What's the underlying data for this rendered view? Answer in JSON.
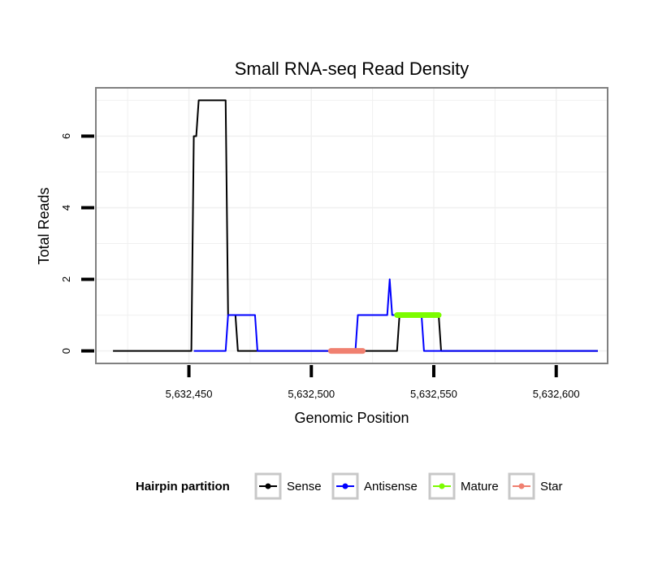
{
  "chart_data": {
    "type": "line",
    "title": "Small RNA-seq Read Density",
    "xlabel": "Genomic Position",
    "ylabel": "Total Reads",
    "xlim": [
      5632412,
      5632621
    ],
    "ylim": [
      -0.35,
      7.35
    ],
    "x_ticks": [
      5632450,
      5632500,
      5632550,
      5632600
    ],
    "x_tick_labels": [
      "5,632,450",
      "5,632,500",
      "5,632,550",
      "5,632,600"
    ],
    "y_ticks": [
      0,
      2,
      4,
      6
    ],
    "y_tick_labels": [
      "0",
      "2",
      "4",
      "6"
    ],
    "grid": true,
    "legend": {
      "title": "Hairpin partition",
      "placement": "bottom",
      "entries": [
        "Sense",
        "Antisense",
        "Mature",
        "Star"
      ]
    },
    "colors": {
      "Sense": "#000000",
      "Antisense": "#0000ff",
      "Mature": "#7cfc00",
      "Star": "#f08070",
      "panel_border": "#808080",
      "grid": "#f0f0f0"
    },
    "series": [
      {
        "name": "Sense",
        "x": [
          5632419,
          5632450,
          5632451,
          5632452,
          5632453,
          5632454,
          5632465,
          5632466,
          5632469,
          5632470,
          5632475,
          5632491,
          5632510,
          5632533,
          5632535,
          5632536,
          5632550,
          5632551,
          5632552,
          5632553,
          5632617
        ],
        "y": [
          0,
          0,
          0,
          6,
          6,
          7,
          7,
          1,
          1,
          0,
          0,
          0,
          0,
          0,
          0,
          1,
          1,
          1,
          1,
          0,
          0
        ]
      },
      {
        "name": "Antisense",
        "x": [
          5632452,
          5632465,
          5632466,
          5632477,
          5632478,
          5632518,
          5632519,
          5632531,
          5632532,
          5632533,
          5632534,
          5632545,
          5632546,
          5632617
        ],
        "y": [
          0,
          0,
          1,
          1,
          0,
          0,
          1,
          1,
          2,
          1,
          1,
          1,
          0,
          0
        ]
      },
      {
        "name": "Mature",
        "x": [
          5632535,
          5632552
        ],
        "y": [
          1,
          1
        ]
      },
      {
        "name": "Star",
        "x": [
          5632508,
          5632521
        ],
        "y": [
          0,
          0
        ]
      }
    ]
  }
}
